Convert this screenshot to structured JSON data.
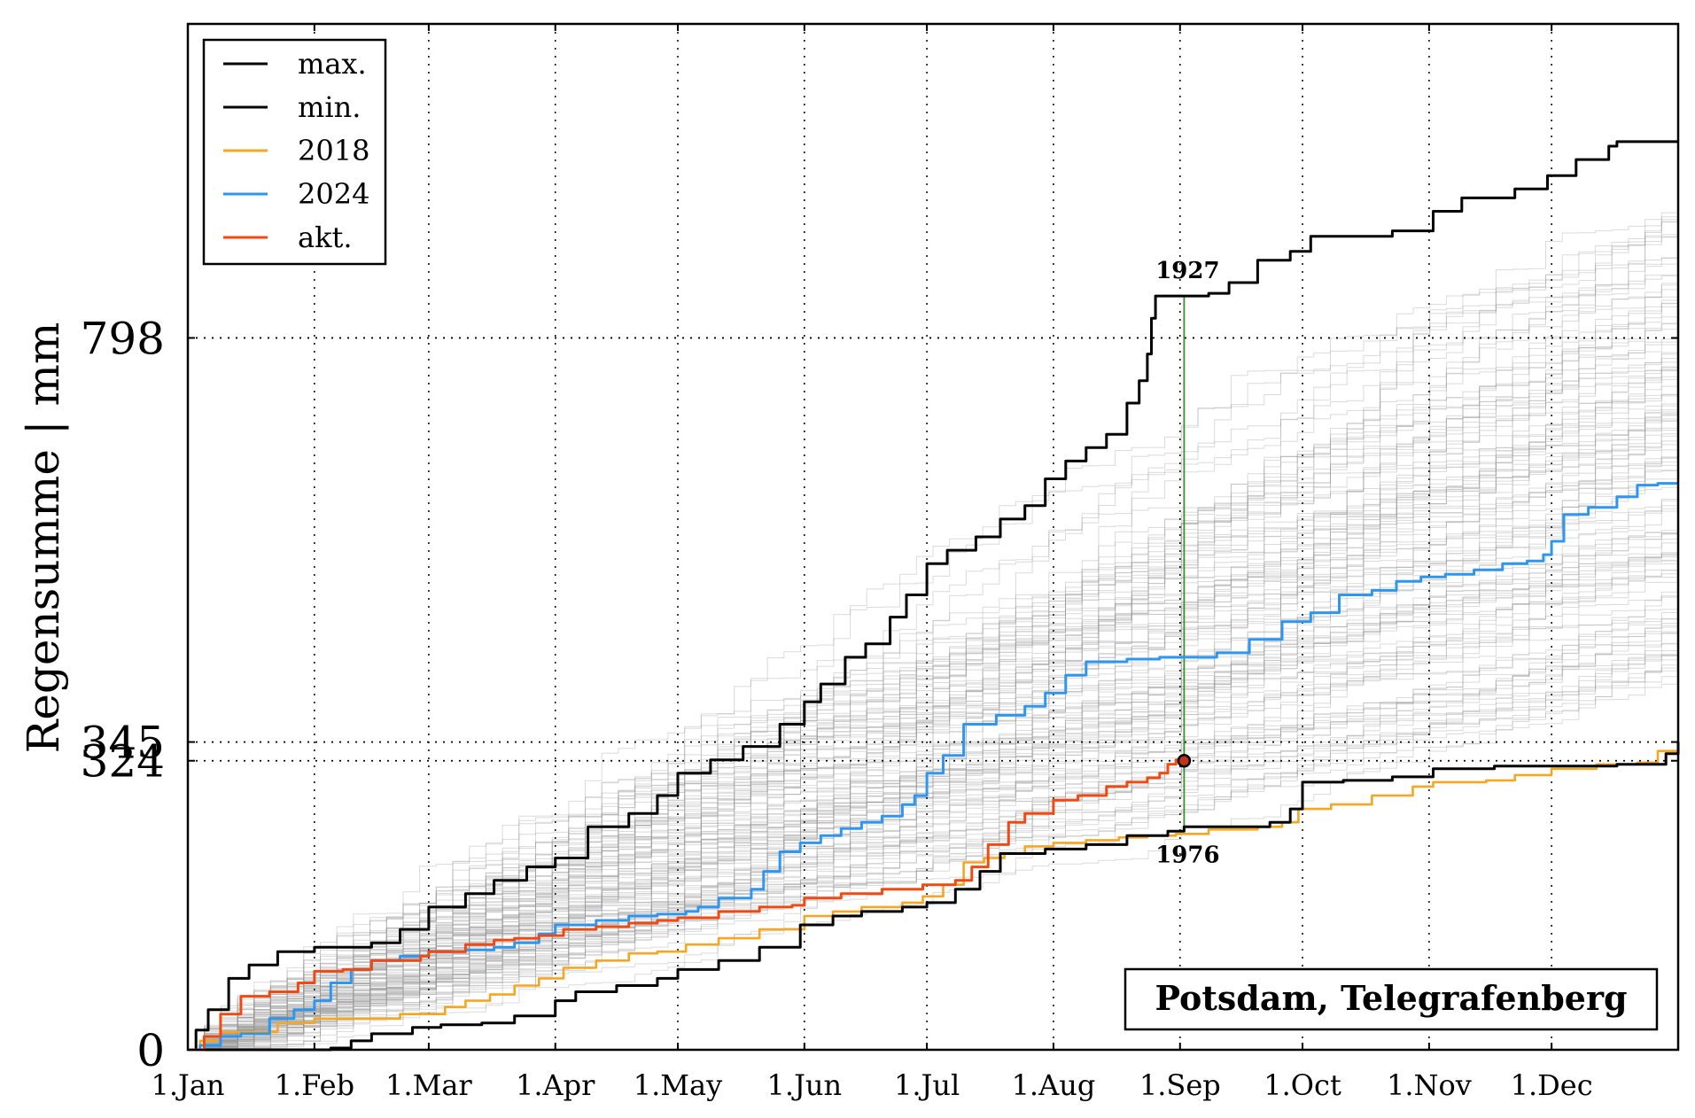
{
  "chart_data": {
    "type": "line",
    "title": "",
    "ylabel": "Regensumme | mm",
    "xlabel": "",
    "station": "Potsdam, Telegrafenberg",
    "xlim_day": [
      0,
      365
    ],
    "ylim": [
      0,
      1150
    ],
    "grid": true,
    "legend_position": "top-left",
    "x_ticks": [
      {
        "label": "1.Jan",
        "day": 0
      },
      {
        "label": "1.Feb",
        "day": 31
      },
      {
        "label": "1.Mar",
        "day": 59
      },
      {
        "label": "1.Apr",
        "day": 90
      },
      {
        "label": "1.May",
        "day": 120
      },
      {
        "label": "1.Jun",
        "day": 151
      },
      {
        "label": "1.Jul",
        "day": 181
      },
      {
        "label": "1.Aug",
        "day": 212
      },
      {
        "label": "1.Sep",
        "day": 243
      },
      {
        "label": "1.Oct",
        "day": 273
      },
      {
        "label": "1.Nov",
        "day": 304
      },
      {
        "label": "1.Dec",
        "day": 334
      }
    ],
    "y_ticks": [
      {
        "label": "0",
        "value": 0
      },
      {
        "label": "324",
        "value": 324
      },
      {
        "label": "345",
        "value": 345
      },
      {
        "label": "798",
        "value": 798
      }
    ],
    "series": [
      {
        "name": "max.",
        "color": "#000000",
        "points": [
          [
            0,
            0
          ],
          [
            2,
            22
          ],
          [
            5,
            45
          ],
          [
            10,
            80
          ],
          [
            15,
            95
          ],
          [
            22,
            110
          ],
          [
            31,
            115
          ],
          [
            40,
            115
          ],
          [
            45,
            120
          ],
          [
            52,
            135
          ],
          [
            59,
            160
          ],
          [
            68,
            175
          ],
          [
            75,
            190
          ],
          [
            83,
            205
          ],
          [
            90,
            215
          ],
          [
            98,
            250
          ],
          [
            108,
            265
          ],
          [
            115,
            285
          ],
          [
            120,
            310
          ],
          [
            128,
            325
          ],
          [
            136,
            340
          ],
          [
            145,
            365
          ],
          [
            151,
            390
          ],
          [
            155,
            410
          ],
          [
            161,
            440
          ],
          [
            166,
            455
          ],
          [
            172,
            485
          ],
          [
            176,
            510
          ],
          [
            181,
            545
          ],
          [
            186,
            560
          ],
          [
            193,
            575
          ],
          [
            199,
            595
          ],
          [
            205,
            610
          ],
          [
            210,
            640
          ],
          [
            215,
            660
          ],
          [
            220,
            675
          ],
          [
            225,
            690
          ],
          [
            230,
            725
          ],
          [
            233,
            750
          ],
          [
            235,
            780
          ],
          [
            236,
            820
          ],
          [
            237,
            845
          ],
          [
            242,
            845
          ],
          [
            244,
            845
          ],
          [
            250,
            848
          ],
          [
            255,
            860
          ],
          [
            262,
            885
          ],
          [
            270,
            895
          ],
          [
            275,
            912
          ],
          [
            285,
            912
          ],
          [
            295,
            918
          ],
          [
            305,
            940
          ],
          [
            312,
            955
          ],
          [
            325,
            965
          ],
          [
            333,
            980
          ],
          [
            340,
            998
          ],
          [
            348,
            1013
          ],
          [
            350,
            1018
          ],
          [
            360,
            1018
          ],
          [
            365,
            1018
          ]
        ]
      },
      {
        "name": "min.",
        "color": "#000000",
        "points": [
          [
            0,
            0
          ],
          [
            31,
            0
          ],
          [
            35,
            2
          ],
          [
            40,
            10
          ],
          [
            45,
            18
          ],
          [
            55,
            25
          ],
          [
            62,
            28
          ],
          [
            72,
            30
          ],
          [
            80,
            38
          ],
          [
            90,
            55
          ],
          [
            95,
            65
          ],
          [
            105,
            72
          ],
          [
            115,
            80
          ],
          [
            120,
            90
          ],
          [
            130,
            100
          ],
          [
            140,
            115
          ],
          [
            150,
            140
          ],
          [
            158,
            150
          ],
          [
            165,
            155
          ],
          [
            175,
            160
          ],
          [
            181,
            165
          ],
          [
            188,
            180
          ],
          [
            194,
            200
          ],
          [
            199,
            220
          ],
          [
            210,
            225
          ],
          [
            220,
            230
          ],
          [
            230,
            240
          ],
          [
            240,
            245
          ],
          [
            244,
            250
          ],
          [
            255,
            250
          ],
          [
            265,
            255
          ],
          [
            270,
            270
          ],
          [
            273,
            300
          ],
          [
            283,
            302
          ],
          [
            295,
            306
          ],
          [
            305,
            315
          ],
          [
            320,
            318
          ],
          [
            334,
            318
          ],
          [
            350,
            320
          ],
          [
            362,
            332
          ],
          [
            365,
            345
          ]
        ]
      },
      {
        "name": "2018",
        "color": "#f5a623",
        "points": [
          [
            0,
            0
          ],
          [
            3,
            10
          ],
          [
            8,
            20
          ],
          [
            15,
            20
          ],
          [
            22,
            30
          ],
          [
            31,
            35
          ],
          [
            38,
            35
          ],
          [
            45,
            35
          ],
          [
            52,
            40
          ],
          [
            59,
            40
          ],
          [
            63,
            48
          ],
          [
            68,
            55
          ],
          [
            74,
            62
          ],
          [
            80,
            72
          ],
          [
            86,
            80
          ],
          [
            92,
            92
          ],
          [
            100,
            100
          ],
          [
            108,
            108
          ],
          [
            115,
            110
          ],
          [
            122,
            118
          ],
          [
            130,
            125
          ],
          [
            140,
            135
          ],
          [
            151,
            150
          ],
          [
            158,
            155
          ],
          [
            165,
            160
          ],
          [
            175,
            165
          ],
          [
            180,
            172
          ],
          [
            185,
            185
          ],
          [
            190,
            210
          ],
          [
            195,
            215
          ],
          [
            200,
            220
          ],
          [
            205,
            228
          ],
          [
            212,
            232
          ],
          [
            220,
            235
          ],
          [
            228,
            238
          ],
          [
            235,
            240
          ],
          [
            242,
            242
          ],
          [
            250,
            247
          ],
          [
            262,
            250
          ],
          [
            268,
            255
          ],
          [
            272,
            270
          ],
          [
            280,
            275
          ],
          [
            290,
            285
          ],
          [
            300,
            295
          ],
          [
            305,
            300
          ],
          [
            318,
            302
          ],
          [
            325,
            308
          ],
          [
            334,
            315
          ],
          [
            345,
            320
          ],
          [
            355,
            322
          ],
          [
            360,
            335
          ],
          [
            365,
            345
          ]
        ]
      },
      {
        "name": "2024",
        "color": "#2e96f0",
        "points": [
          [
            0,
            0
          ],
          [
            3,
            5
          ],
          [
            8,
            15
          ],
          [
            13,
            18
          ],
          [
            20,
            35
          ],
          [
            26,
            45
          ],
          [
            31,
            55
          ],
          [
            35,
            75
          ],
          [
            40,
            90
          ],
          [
            45,
            100
          ],
          [
            52,
            105
          ],
          [
            59,
            110
          ],
          [
            68,
            112
          ],
          [
            75,
            115
          ],
          [
            80,
            120
          ],
          [
            86,
            130
          ],
          [
            90,
            140
          ],
          [
            100,
            145
          ],
          [
            108,
            150
          ],
          [
            115,
            152
          ],
          [
            122,
            155
          ],
          [
            125,
            160
          ],
          [
            130,
            170
          ],
          [
            138,
            180
          ],
          [
            141,
            200
          ],
          [
            145,
            222
          ],
          [
            150,
            232
          ],
          [
            155,
            240
          ],
          [
            160,
            248
          ],
          [
            165,
            255
          ],
          [
            170,
            262
          ],
          [
            175,
            275
          ],
          [
            178,
            285
          ],
          [
            181,
            310
          ],
          [
            185,
            330
          ],
          [
            190,
            365
          ],
          [
            198,
            375
          ],
          [
            205,
            385
          ],
          [
            210,
            400
          ],
          [
            215,
            420
          ],
          [
            220,
            435
          ],
          [
            230,
            438
          ],
          [
            238,
            440
          ],
          [
            245,
            440
          ],
          [
            252,
            445
          ],
          [
            260,
            460
          ],
          [
            268,
            480
          ],
          [
            275,
            490
          ],
          [
            282,
            510
          ],
          [
            290,
            515
          ],
          [
            296,
            525
          ],
          [
            302,
            530
          ],
          [
            308,
            533
          ],
          [
            315,
            538
          ],
          [
            322,
            545
          ],
          [
            328,
            548
          ],
          [
            332,
            555
          ],
          [
            334,
            570
          ],
          [
            337,
            600
          ],
          [
            343,
            608
          ],
          [
            350,
            620
          ],
          [
            355,
            633
          ],
          [
            360,
            635
          ],
          [
            365,
            635
          ]
        ]
      },
      {
        "name": "akt.",
        "color": "#f04a14",
        "points": [
          [
            0,
            0
          ],
          [
            4,
            15
          ],
          [
            8,
            40
          ],
          [
            13,
            60
          ],
          [
            20,
            65
          ],
          [
            27,
            75
          ],
          [
            31,
            88
          ],
          [
            38,
            90
          ],
          [
            45,
            100
          ],
          [
            52,
            100
          ],
          [
            57,
            105
          ],
          [
            59,
            110
          ],
          [
            68,
            118
          ],
          [
            75,
            123
          ],
          [
            80,
            125
          ],
          [
            86,
            128
          ],
          [
            92,
            135
          ],
          [
            100,
            138
          ],
          [
            108,
            142
          ],
          [
            115,
            145
          ],
          [
            120,
            148
          ],
          [
            130,
            155
          ],
          [
            140,
            160
          ],
          [
            148,
            162
          ],
          [
            151,
            170
          ],
          [
            160,
            175
          ],
          [
            170,
            180
          ],
          [
            180,
            185
          ],
          [
            188,
            190
          ],
          [
            192,
            205
          ],
          [
            196,
            230
          ],
          [
            201,
            255
          ],
          [
            205,
            265
          ],
          [
            212,
            280
          ],
          [
            218,
            285
          ],
          [
            225,
            295
          ],
          [
            230,
            300
          ],
          [
            235,
            305
          ],
          [
            238,
            310
          ],
          [
            240,
            320
          ],
          [
            242,
            325
          ],
          [
            244,
            324
          ]
        ]
      }
    ],
    "markers": [
      {
        "label": "1927",
        "day": 244,
        "value": 845
      },
      {
        "label": "1976",
        "day": 244,
        "value": 250
      }
    ],
    "current_point": {
      "day": 244,
      "value": 324
    },
    "colors": {
      "background_lines": "#999999",
      "marker_line": "#3a8f2f",
      "point_fill": "#c0351a"
    }
  }
}
